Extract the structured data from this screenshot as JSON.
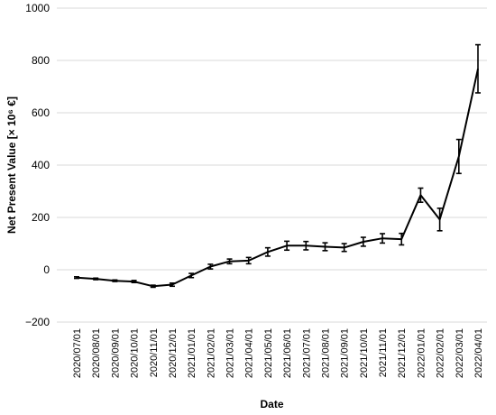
{
  "chart_data": {
    "type": "line",
    "title": "",
    "xlabel": "Date",
    "ylabel": "Net Present Value [× 10⁶ €]",
    "ylim": [
      -200,
      1000
    ],
    "yticks": [
      -200,
      0,
      200,
      400,
      600,
      800,
      1000
    ],
    "ytick_labels": [
      "−200",
      "0",
      "200",
      "400",
      "600",
      "800",
      "1000"
    ],
    "grid": "horizontal",
    "legend": "none",
    "x": [
      "2020/07/01",
      "2020/08/01",
      "2020/09/01",
      "2020/10/01",
      "2020/11/01",
      "2020/12/01",
      "2021/01/01",
      "2021/02/01",
      "2021/03/01",
      "2021/04/01",
      "2021/05/01",
      "2021/06/01",
      "2021/07/01",
      "2021/08/01",
      "2021/09/01",
      "2021/10/01",
      "2021/11/01",
      "2021/12/01",
      "2022/01/01",
      "2022/02/01",
      "2022/03/01",
      "2022/04/01"
    ],
    "series": [
      {
        "values": [
          -30,
          -35,
          -42,
          -45,
          -63,
          -57,
          -22,
          12,
          32,
          35,
          68,
          92,
          92,
          88,
          85,
          107,
          120,
          117,
          285,
          192,
          433,
          768
        ],
        "error": [
          3,
          3,
          3,
          4,
          4,
          6,
          8,
          9,
          9,
          12,
          16,
          17,
          16,
          15,
          15,
          17,
          18,
          22,
          27,
          43,
          65,
          92
        ],
        "color": "#000000"
      }
    ]
  }
}
